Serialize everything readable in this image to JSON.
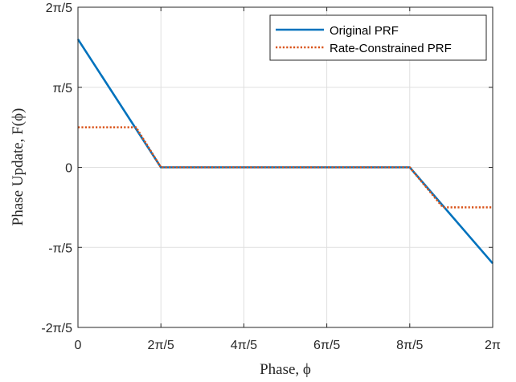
{
  "chart_data": {
    "type": "line",
    "xlabel": "Phase, ϕ",
    "ylabel": "Phase Update, F(ϕ)",
    "x_unit": "π",
    "y_unit": "π",
    "xlim": [
      0,
      2
    ],
    "ylim": [
      -0.4,
      0.4
    ],
    "x_ticks": [
      {
        "value": 0,
        "label": "0"
      },
      {
        "value": 0.4,
        "label": "2π/5"
      },
      {
        "value": 0.8,
        "label": "4π/5"
      },
      {
        "value": 1.2,
        "label": "6π/5"
      },
      {
        "value": 1.6,
        "label": "8π/5"
      },
      {
        "value": 2.0,
        "label": "2π"
      }
    ],
    "y_ticks": [
      {
        "value": 0.4,
        "label": "2π/5"
      },
      {
        "value": 0.2,
        "label": "π/5"
      },
      {
        "value": 0,
        "label": "0"
      },
      {
        "value": -0.2,
        "label": "-π/5"
      },
      {
        "value": -0.4,
        "label": "-2π/5"
      }
    ],
    "grid": true,
    "legend_position": "top-right",
    "series": [
      {
        "name": "Original PRF",
        "color": "#0072BD",
        "style": "solid",
        "x": [
          0,
          0.4,
          1.6,
          2.0
        ],
        "y": [
          0.32,
          0,
          0,
          -0.24
        ]
      },
      {
        "name": "Rate-Constrained PRF",
        "color": "#D95319",
        "style": "dotted",
        "x": [
          0,
          0.28,
          0.4,
          1.6,
          1.76,
          2.0
        ],
        "y": [
          0.1,
          0.1,
          0,
          0,
          -0.1,
          -0.1
        ]
      }
    ]
  }
}
